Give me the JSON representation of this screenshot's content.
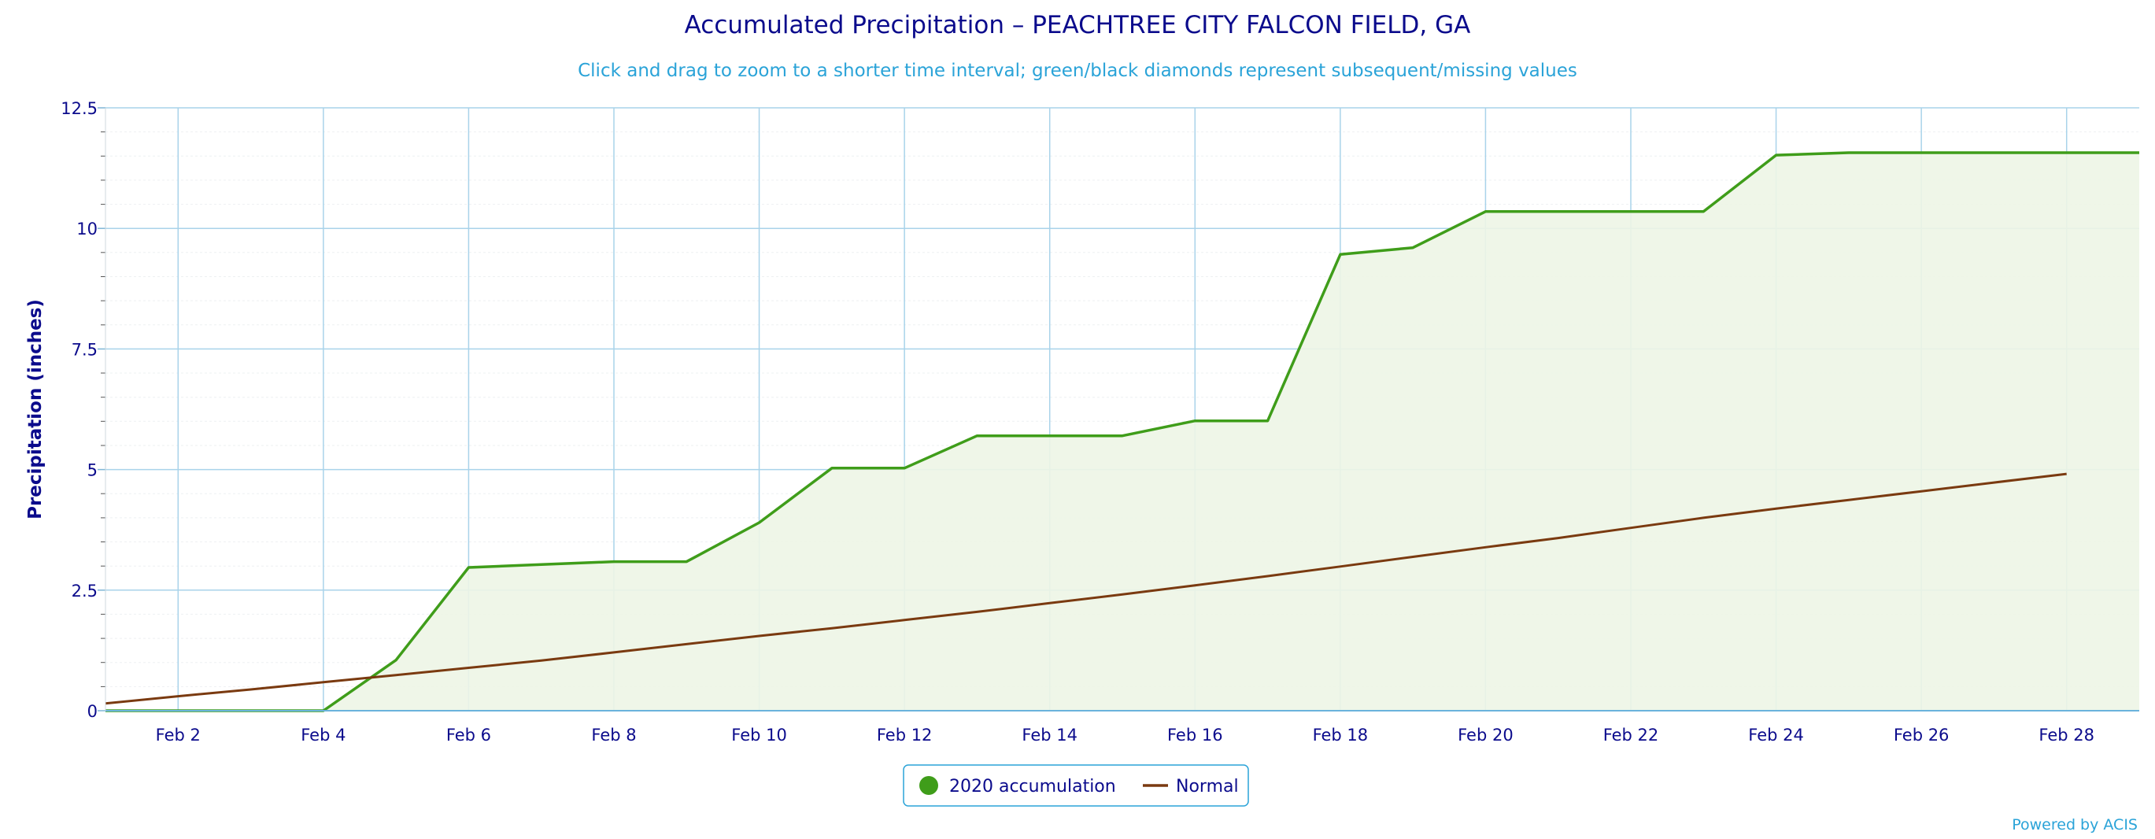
{
  "chart_data": {
    "type": "area",
    "title": "Accumulated Precipitation – PEACHTREE CITY FALCON FIELD, GA",
    "subtitle": "Click and drag to zoom to a shorter time interval; green/black diamonds represent subsequent/missing values",
    "xlabel": "",
    "ylabel": "Precipitation (inches)",
    "xlim": [
      1,
      29
    ],
    "ylim": [
      0,
      12.5
    ],
    "x_ticks": [
      2,
      4,
      6,
      8,
      10,
      12,
      14,
      16,
      18,
      20,
      22,
      24,
      26,
      28
    ],
    "x_tick_labels": [
      "Feb 2",
      "Feb 4",
      "Feb 6",
      "Feb 8",
      "Feb 10",
      "Feb 12",
      "Feb 14",
      "Feb 16",
      "Feb 18",
      "Feb 20",
      "Feb 22",
      "Feb 24",
      "Feb 26",
      "Feb 28"
    ],
    "y_ticks": [
      0,
      2.5,
      5,
      7.5,
      10,
      12.5
    ],
    "y_tick_labels": [
      "0",
      "2.5",
      "5",
      "7.5",
      "10",
      "12.5"
    ],
    "grid": true,
    "legend_position": "bottom-center",
    "x": [
      1,
      2,
      3,
      4,
      5,
      6,
      7,
      8,
      9,
      10,
      11,
      12,
      13,
      14,
      15,
      16,
      17,
      18,
      19,
      20,
      21,
      22,
      23,
      24,
      25,
      26,
      27,
      28,
      29
    ],
    "series": [
      {
        "name": "2020 accumulation",
        "style": "area",
        "color": "#3f9d1a",
        "fill": "#edf5e5",
        "values": [
          0,
          0,
          0,
          0,
          1.05,
          2.97,
          3.03,
          3.09,
          3.09,
          3.9,
          5.03,
          5.03,
          5.7,
          5.7,
          5.7,
          6.01,
          6.01,
          9.46,
          9.6,
          10.35,
          10.35,
          10.35,
          10.35,
          11.52,
          11.57,
          11.57,
          11.57,
          11.57,
          11.57
        ]
      },
      {
        "name": "Normal",
        "style": "line",
        "color": "#7a3a10",
        "values": [
          0.15,
          0.3,
          0.44,
          0.59,
          0.74,
          0.89,
          1.04,
          1.21,
          1.38,
          1.55,
          1.71,
          1.88,
          2.05,
          2.23,
          2.41,
          2.6,
          2.79,
          2.99,
          3.19,
          3.39,
          3.58,
          3.79,
          4.0,
          4.19,
          4.37,
          4.55,
          4.73,
          4.91,
          null
        ]
      }
    ]
  },
  "footer": {
    "credit": "Powered by ACIS"
  }
}
